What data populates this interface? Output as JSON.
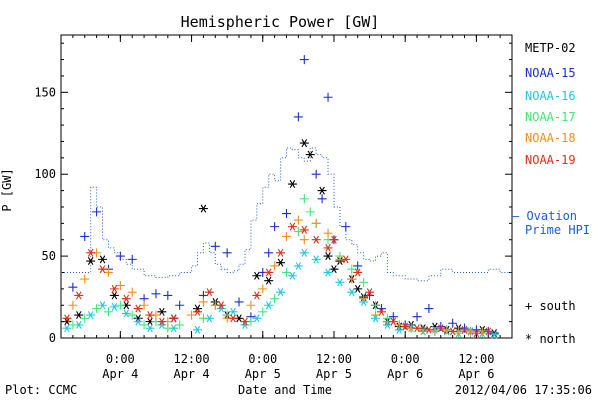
{
  "chart_data": {
    "type": "scatter",
    "title": "Hemispheric Power [GW]",
    "ylabel": "P [GW]",
    "xlabel": "Date and Time",
    "ylim": [
      0,
      185
    ],
    "yticks": [
      0,
      50,
      100,
      150
    ],
    "xticks": [
      {
        "t": 0,
        "time": "0:00",
        "day": "Apr 4"
      },
      {
        "t": 12,
        "time": "12:00",
        "day": "Apr 4"
      },
      {
        "t": 24,
        "time": "0:00",
        "day": "Apr 5"
      },
      {
        "t": 36,
        "time": "12:00",
        "day": "Apr 5"
      },
      {
        "t": 48,
        "time": "0:00",
        "day": "Apr 6"
      },
      {
        "t": 60,
        "time": "12:00",
        "day": "Apr 6"
      }
    ],
    "x_unit": "hours since Apr 4 0:00",
    "xlim": [
      -10,
      66
    ],
    "legend_position": "right",
    "satellites": [
      {
        "name": "METP-02",
        "color": "#000000"
      },
      {
        "name": "NOAA-15",
        "color": "#1a2fd0"
      },
      {
        "name": "NOAA-16",
        "color": "#20c8e8"
      },
      {
        "name": "NOAA-17",
        "color": "#40e878"
      },
      {
        "name": "NOAA-18",
        "color": "#f0901c"
      },
      {
        "name": "NOAA-19",
        "color": "#e03018"
      }
    ],
    "ovation": {
      "label": [
        "— Ovation",
        "Prime HPI"
      ],
      "color": "#1a5fd0",
      "points": [
        [
          -10,
          40
        ],
        [
          -8,
          40
        ],
        [
          -6,
          40
        ],
        [
          -5,
          92
        ],
        [
          -4,
          80
        ],
        [
          -3,
          60
        ],
        [
          -2,
          55
        ],
        [
          -1,
          52
        ],
        [
          0,
          48
        ],
        [
          1,
          45
        ],
        [
          2,
          42
        ],
        [
          4,
          38
        ],
        [
          6,
          37
        ],
        [
          8,
          38
        ],
        [
          10,
          40
        ],
        [
          12,
          44
        ],
        [
          13,
          52
        ],
        [
          14,
          58
        ],
        [
          15,
          52
        ],
        [
          16,
          45
        ],
        [
          17,
          42
        ],
        [
          18,
          40
        ],
        [
          19,
          41
        ],
        [
          20,
          45
        ],
        [
          21,
          54
        ],
        [
          22,
          72
        ],
        [
          23,
          82
        ],
        [
          24,
          92
        ],
        [
          25,
          100
        ],
        [
          26,
          96
        ],
        [
          27,
          110
        ],
        [
          28,
          116
        ],
        [
          29,
          115
        ],
        [
          30,
          110
        ],
        [
          31,
          108
        ],
        [
          32,
          116
        ],
        [
          33,
          112
        ],
        [
          34,
          110
        ],
        [
          35,
          100
        ],
        [
          36,
          80
        ],
        [
          37,
          68
        ],
        [
          38,
          60
        ],
        [
          39,
          57
        ],
        [
          40,
          52
        ],
        [
          41,
          48
        ],
        [
          42,
          47
        ],
        [
          43,
          50
        ],
        [
          44,
          52
        ],
        [
          45,
          40
        ],
        [
          46,
          38
        ],
        [
          48,
          36
        ],
        [
          50,
          35
        ],
        [
          52,
          38
        ],
        [
          54,
          42
        ],
        [
          56,
          40
        ],
        [
          58,
          40
        ],
        [
          60,
          40
        ],
        [
          62,
          42
        ],
        [
          64,
          40
        ],
        [
          66,
          40
        ]
      ]
    },
    "series": [
      {
        "name": "METP-02",
        "hemisphere": "north",
        "points": [
          [
            -9,
            10
          ],
          [
            -7,
            14
          ],
          [
            -5,
            47
          ],
          [
            -3,
            48
          ],
          [
            -1,
            26
          ],
          [
            1,
            20
          ],
          [
            3,
            12
          ],
          [
            5,
            10
          ],
          [
            7,
            16
          ],
          [
            9,
            12
          ],
          [
            13,
            18
          ],
          [
            14,
            79
          ],
          [
            16,
            22
          ],
          [
            18,
            14
          ],
          [
            20,
            12
          ],
          [
            23,
            38
          ],
          [
            25,
            35
          ],
          [
            27,
            46
          ],
          [
            29,
            94
          ],
          [
            31,
            119
          ],
          [
            32,
            112
          ],
          [
            34,
            90
          ],
          [
            35,
            50
          ],
          [
            36,
            42
          ],
          [
            37,
            47
          ],
          [
            39,
            36
          ],
          [
            40,
            30
          ],
          [
            41,
            25
          ],
          [
            43,
            20
          ],
          [
            45,
            10
          ],
          [
            47,
            7
          ],
          [
            49,
            8
          ],
          [
            51,
            6
          ],
          [
            53,
            7
          ],
          [
            55,
            5
          ],
          [
            57,
            6
          ],
          [
            59,
            4
          ],
          [
            61,
            5
          ],
          [
            63,
            3
          ]
        ]
      },
      {
        "name": "NOAA-15",
        "hemisphere": "south",
        "points": [
          [
            -8,
            31
          ],
          [
            -6,
            62
          ],
          [
            -4,
            77
          ],
          [
            -2,
            42
          ],
          [
            0,
            50
          ],
          [
            2,
            48
          ],
          [
            4,
            24
          ],
          [
            6,
            27
          ],
          [
            8,
            26
          ],
          [
            10,
            20
          ],
          [
            14,
            26
          ],
          [
            16,
            56
          ],
          [
            18,
            52
          ],
          [
            20,
            22
          ],
          [
            22,
            13
          ],
          [
            24,
            40
          ],
          [
            25,
            52
          ],
          [
            26,
            68
          ],
          [
            28,
            76
          ],
          [
            30,
            135
          ],
          [
            31,
            170
          ],
          [
            33,
            100
          ],
          [
            34,
            85
          ],
          [
            35,
            147
          ],
          [
            36,
            60
          ],
          [
            38,
            68
          ],
          [
            40,
            44
          ],
          [
            42,
            26
          ],
          [
            44,
            18
          ],
          [
            46,
            13
          ],
          [
            48,
            8
          ],
          [
            50,
            13
          ],
          [
            52,
            18
          ],
          [
            54,
            7
          ],
          [
            56,
            9
          ],
          [
            58,
            6
          ],
          [
            60,
            5
          ],
          [
            62,
            4
          ]
        ]
      },
      {
        "name": "NOAA-16",
        "hemisphere": "north",
        "points": [
          [
            -9,
            6
          ],
          [
            -7,
            8
          ],
          [
            -5,
            14
          ],
          [
            -3,
            20
          ],
          [
            -1,
            19
          ],
          [
            1,
            15
          ],
          [
            3,
            10
          ],
          [
            5,
            6
          ],
          [
            7,
            8
          ],
          [
            9,
            6
          ],
          [
            13,
            5
          ],
          [
            15,
            12
          ],
          [
            17,
            18
          ],
          [
            19,
            16
          ],
          [
            21,
            8
          ],
          [
            23,
            12
          ],
          [
            25,
            20
          ],
          [
            27,
            28
          ],
          [
            29,
            38
          ],
          [
            30,
            44
          ],
          [
            31,
            52
          ],
          [
            33,
            48
          ],
          [
            35,
            40
          ],
          [
            37,
            34
          ],
          [
            39,
            28
          ],
          [
            41,
            22
          ],
          [
            43,
            12
          ],
          [
            45,
            8
          ],
          [
            47,
            5
          ],
          [
            49,
            6
          ],
          [
            51,
            4
          ],
          [
            53,
            5
          ],
          [
            55,
            4
          ],
          [
            57,
            3
          ],
          [
            59,
            4
          ],
          [
            61,
            3
          ],
          [
            63,
            2
          ]
        ]
      },
      {
        "name": "NOAA-17",
        "hemisphere": "south",
        "points": [
          [
            -8,
            8
          ],
          [
            -6,
            12
          ],
          [
            -4,
            18
          ],
          [
            -2,
            16
          ],
          [
            0,
            20
          ],
          [
            2,
            14
          ],
          [
            4,
            8
          ],
          [
            6,
            10
          ],
          [
            8,
            6
          ],
          [
            10,
            8
          ],
          [
            14,
            12
          ],
          [
            16,
            20
          ],
          [
            18,
            14
          ],
          [
            22,
            10
          ],
          [
            24,
            16
          ],
          [
            26,
            24
          ],
          [
            28,
            40
          ],
          [
            30,
            65
          ],
          [
            31,
            85
          ],
          [
            32,
            77
          ],
          [
            33,
            70
          ],
          [
            35,
            60
          ],
          [
            37,
            50
          ],
          [
            39,
            42
          ],
          [
            41,
            34
          ],
          [
            43,
            20
          ],
          [
            45,
            12
          ],
          [
            47,
            8
          ],
          [
            49,
            6
          ],
          [
            51,
            5
          ],
          [
            53,
            4
          ],
          [
            55,
            5
          ],
          [
            57,
            3
          ],
          [
            59,
            4
          ],
          [
            61,
            3
          ]
        ]
      },
      {
        "name": "NOAA-18",
        "hemisphere": "south",
        "points": [
          [
            -8,
            20
          ],
          [
            -6,
            36
          ],
          [
            -4,
            52
          ],
          [
            -2,
            40
          ],
          [
            0,
            32
          ],
          [
            2,
            28
          ],
          [
            4,
            20
          ],
          [
            6,
            14
          ],
          [
            8,
            10
          ],
          [
            12,
            14
          ],
          [
            14,
            22
          ],
          [
            16,
            20
          ],
          [
            18,
            12
          ],
          [
            22,
            20
          ],
          [
            24,
            30
          ],
          [
            26,
            44
          ],
          [
            28,
            62
          ],
          [
            30,
            72
          ],
          [
            31,
            60
          ],
          [
            33,
            70
          ],
          [
            35,
            64
          ],
          [
            37,
            48
          ],
          [
            39,
            36
          ],
          [
            41,
            24
          ],
          [
            43,
            14
          ],
          [
            45,
            10
          ],
          [
            47,
            8
          ],
          [
            49,
            6
          ],
          [
            51,
            5
          ],
          [
            53,
            4
          ],
          [
            55,
            5
          ],
          [
            57,
            4
          ],
          [
            59,
            3
          ],
          [
            61,
            4
          ]
        ]
      },
      {
        "name": "NOAA-19",
        "hemisphere": "north",
        "points": [
          [
            -9,
            12
          ],
          [
            -7,
            26
          ],
          [
            -5,
            52
          ],
          [
            -3,
            42
          ],
          [
            -1,
            30
          ],
          [
            1,
            24
          ],
          [
            3,
            18
          ],
          [
            5,
            14
          ],
          [
            7,
            10
          ],
          [
            9,
            12
          ],
          [
            13,
            16
          ],
          [
            15,
            28
          ],
          [
            17,
            20
          ],
          [
            19,
            12
          ],
          [
            21,
            10
          ],
          [
            23,
            26
          ],
          [
            25,
            40
          ],
          [
            27,
            52
          ],
          [
            29,
            68
          ],
          [
            31,
            66
          ],
          [
            33,
            60
          ],
          [
            35,
            55
          ],
          [
            36,
            60
          ],
          [
            38,
            48
          ],
          [
            40,
            40
          ],
          [
            42,
            28
          ],
          [
            44,
            16
          ],
          [
            46,
            10
          ],
          [
            48,
            7
          ],
          [
            50,
            6
          ],
          [
            52,
            5
          ],
          [
            54,
            6
          ],
          [
            56,
            4
          ],
          [
            58,
            5
          ],
          [
            60,
            3
          ],
          [
            62,
            4
          ]
        ]
      }
    ],
    "hemisphere_legend": [
      {
        "symbol": "+",
        "label": "south"
      },
      {
        "symbol": "*",
        "label": "north"
      }
    ]
  },
  "footer": {
    "left": "Plot: CCMC",
    "center": "Date and Time",
    "right": "2012/04/06 17:35:06"
  }
}
